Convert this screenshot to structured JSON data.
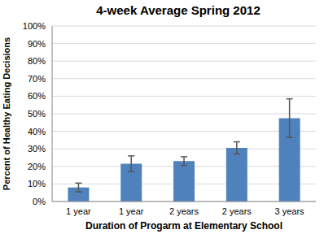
{
  "chart_data": {
    "type": "bar",
    "title": "4-week Average Spring 2012",
    "x_label": "Duration of Progarm at Elementary School",
    "y_label": "Percent of Healthy Eating Decisions",
    "categories": [
      "1 year",
      "1 year",
      "2 years",
      "2 years",
      "3 years"
    ],
    "values": [
      8,
      21.5,
      23,
      30.5,
      47.5
    ],
    "errors": [
      2.5,
      4.5,
      2.5,
      3.5,
      11
    ],
    "color": "#4f81bd",
    "ylim": [
      0,
      100
    ],
    "yticks": [
      {
        "value": 0,
        "label": "0%"
      },
      {
        "value": 10,
        "label": "10%"
      },
      {
        "value": 20,
        "label": "20%"
      },
      {
        "value": 30,
        "label": "30%"
      },
      {
        "value": 40,
        "label": "40%"
      },
      {
        "value": 50,
        "label": "50%"
      },
      {
        "value": 60,
        "label": "60%"
      },
      {
        "value": 70,
        "label": "70%"
      },
      {
        "value": 80,
        "label": "80%"
      },
      {
        "value": 90,
        "label": "90%"
      },
      {
        "value": 100,
        "label": "100%"
      }
    ],
    "grid": true
  }
}
